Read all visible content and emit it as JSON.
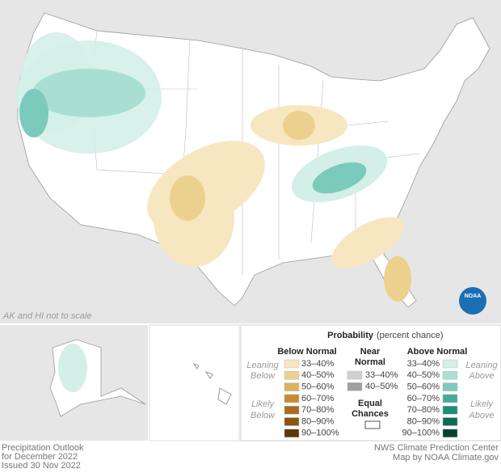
{
  "map": {
    "note": "AK and HI not to scale",
    "logo": "NOAA"
  },
  "legend": {
    "title": "Probability",
    "subtitle": "(percent chance)",
    "below_normal": {
      "header": "Below Normal",
      "items": [
        {
          "label": "33–40%",
          "color": "#f7e7c0"
        },
        {
          "label": "40–50%",
          "color": "#ecd08e"
        },
        {
          "label": "50–60%",
          "color": "#dcb25f"
        },
        {
          "label": "60–70%",
          "color": "#c88b2f"
        },
        {
          "label": "70–80%",
          "color": "#a96d1e"
        },
        {
          "label": "80–90%",
          "color": "#8a5414"
        },
        {
          "label": "90–100%",
          "color": "#5e370a"
        }
      ]
    },
    "near_normal": {
      "header": [
        "Near",
        "Normal"
      ],
      "items": [
        {
          "label": "33–40%",
          "color": "#d0d0d0"
        },
        {
          "label": "40–50%",
          "color": "#a0a0a0"
        }
      ]
    },
    "equal_chances": [
      "Equal",
      "Chances"
    ],
    "above_normal": {
      "header": "Above Normal",
      "items": [
        {
          "label": "33–40%",
          "color": "#d4efe8"
        },
        {
          "label": "40–50%",
          "color": "#a8dfd2"
        },
        {
          "label": "50–60%",
          "color": "#7ccabb"
        },
        {
          "label": "60–70%",
          "color": "#45ab98"
        },
        {
          "label": "70–80%",
          "color": "#1f8c78"
        },
        {
          "label": "80–90%",
          "color": "#0e6b58"
        },
        {
          "label": "90–100%",
          "color": "#064233"
        }
      ]
    },
    "leaning_below": [
      "Leaning",
      "Below"
    ],
    "likely_below": [
      "Likely",
      "Below"
    ],
    "leaning_above": [
      "Leaning",
      "Above"
    ],
    "likely_above": [
      "Likely",
      "Above"
    ]
  },
  "footer": {
    "left": [
      "Precipitation Outlook",
      "for December 2022",
      "Issued 30 Nov 2022"
    ],
    "right": [
      "NWS Climate Prediction Center",
      "Map by NOAA Climate.gov"
    ]
  }
}
